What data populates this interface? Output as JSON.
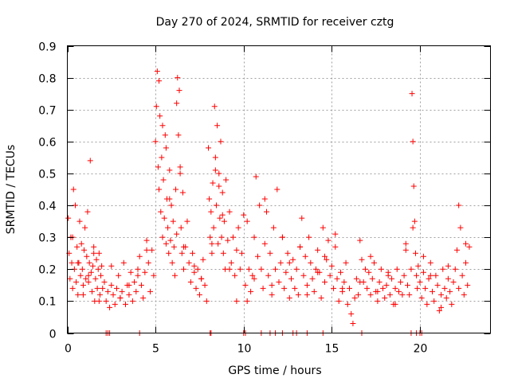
{
  "chart_data": {
    "type": "scatter",
    "title": "Day 270 of 2024, SRMTID for receiver cztg",
    "xlabel": "GPS time / hours",
    "ylabel": "SRMTID / TECUs",
    "xlim": [
      0,
      24
    ],
    "ylim": [
      0,
      0.9
    ],
    "grid": true,
    "marker": "+",
    "x_ticks": [
      0,
      5,
      10,
      15,
      20
    ],
    "x_tick_labels": [
      "0",
      "5",
      "10",
      "15",
      "20"
    ],
    "y_ticks": [
      0,
      0.1,
      0.2,
      0.3,
      0.4,
      0.5,
      0.6,
      0.7,
      0.8,
      0.9
    ],
    "y_tick_labels": [
      "0",
      "0.1",
      "0.2",
      "0.3",
      "0.4",
      "0.5",
      "0.6",
      "0.7",
      "0.8",
      "0.9"
    ],
    "series": [
      {
        "name": "SRMTID",
        "color": "#ff0000",
        "x": [
          0.05,
          0.1,
          0.15,
          0.2,
          0.25,
          0.3,
          0.35,
          0.4,
          0.45,
          0.5,
          0.55,
          0.6,
          0.65,
          0.7,
          0.75,
          0.8,
          0.85,
          0.9,
          0.95,
          1.0,
          1.05,
          1.1,
          1.15,
          1.2,
          1.25,
          1.3,
          1.35,
          1.4,
          1.45,
          1.5,
          1.55,
          1.6,
          1.65,
          1.7,
          1.75,
          1.8,
          1.85,
          1.9,
          1.95,
          2.0,
          2.1,
          2.2,
          2.3,
          2.4,
          2.5,
          2.6,
          2.7,
          2.8,
          2.9,
          3.0,
          3.1,
          3.2,
          3.3,
          3.4,
          3.5,
          3.6,
          3.7,
          3.8,
          3.9,
          4.0,
          4.1,
          4.2,
          4.3,
          4.4,
          4.5,
          4.6,
          4.7,
          4.8,
          4.9,
          5.0,
          5.05,
          5.1,
          5.15,
          5.2,
          5.25,
          5.3,
          5.35,
          5.4,
          5.45,
          5.5,
          5.55,
          5.6,
          5.65,
          5.7,
          5.75,
          5.8,
          5.85,
          5.9,
          5.95,
          6.0,
          6.05,
          6.1,
          6.15,
          6.2,
          6.25,
          6.3,
          6.35,
          6.4,
          6.45,
          6.5,
          6.55,
          6.6,
          6.7,
          6.8,
          6.9,
          7.0,
          7.1,
          7.2,
          7.3,
          7.4,
          7.5,
          7.6,
          7.7,
          7.8,
          7.9,
          8.0,
          8.05,
          8.1,
          8.15,
          8.2,
          8.25,
          8.3,
          8.35,
          8.4,
          8.45,
          8.5,
          8.55,
          8.6,
          8.65,
          8.7,
          8.75,
          8.8,
          8.85,
          8.9,
          8.95,
          9.0,
          9.1,
          9.2,
          9.3,
          9.4,
          9.5,
          9.6,
          9.7,
          9.8,
          9.9,
          10.0,
          10.1,
          10.2,
          10.3,
          10.4,
          10.5,
          10.6,
          10.7,
          10.8,
          10.9,
          11.0,
          11.1,
          11.2,
          11.3,
          11.4,
          11.5,
          11.6,
          11.7,
          11.8,
          11.9,
          12.0,
          12.1,
          12.2,
          12.3,
          12.4,
          12.5,
          12.6,
          12.7,
          12.8,
          12.9,
          13.0,
          13.1,
          13.2,
          13.3,
          13.4,
          13.5,
          13.6,
          13.7,
          13.8,
          13.9,
          14.0,
          14.1,
          14.2,
          14.3,
          14.4,
          14.5,
          14.6,
          14.7,
          14.8,
          14.9,
          15.0,
          15.1,
          15.2,
          15.3,
          15.4,
          15.5,
          15.6,
          15.7,
          15.8,
          15.9,
          16.0,
          16.1,
          16.2,
          16.3,
          16.4,
          16.5,
          16.6,
          16.7,
          16.8,
          16.9,
          17.0,
          17.1,
          17.2,
          17.3,
          17.4,
          17.5,
          17.6,
          17.7,
          17.8,
          17.9,
          18.0,
          18.1,
          18.2,
          18.3,
          18.4,
          18.5,
          18.6,
          18.7,
          18.8,
          18.9,
          19.0,
          19.1,
          19.2,
          19.3,
          19.4,
          19.5,
          19.55,
          19.6,
          19.65,
          19.7,
          19.75,
          19.8,
          19.85,
          19.9,
          20.0,
          20.1,
          20.2,
          20.3,
          20.4,
          20.5,
          20.6,
          20.7,
          20.8,
          20.9,
          21.0,
          21.1,
          21.2,
          21.3,
          21.4,
          21.5,
          21.6,
          21.7,
          21.8,
          21.9,
          22.0,
          22.1,
          22.2,
          22.3,
          22.4,
          22.5,
          22.6,
          22.7,
          22.8,
          0.3,
          0.6,
          0.9,
          1.2,
          1.5,
          1.8,
          2.5,
          3.0,
          3.5,
          4.0,
          4.5,
          5.2,
          5.4,
          5.6,
          5.8,
          6.2,
          6.4,
          6.6,
          7.2,
          7.6,
          8.2,
          8.4,
          8.6,
          8.8,
          9.2,
          9.6,
          10.2,
          10.6,
          11.2,
          11.6,
          12.2,
          12.6,
          13.2,
          13.6,
          14.2,
          14.6,
          15.2,
          15.6,
          16.6,
          17.2,
          17.6,
          18.2,
          18.6,
          19.2,
          19.6,
          20.2,
          20.6,
          21.2,
          21.6,
          22.2,
          22.6,
          2.2,
          2.3,
          2.4,
          4.1,
          8.1,
          8.15,
          10.0,
          10.1,
          11.0,
          11.5,
          11.8,
          12.2,
          12.8,
          13.0,
          13.6,
          14.5,
          16.7,
          19.5,
          19.8,
          20.0,
          20.1
        ],
        "y": [
          0.36,
          0.25,
          0.17,
          0.3,
          0.22,
          0.14,
          0.45,
          0.2,
          0.4,
          0.16,
          0.27,
          0.12,
          0.22,
          0.35,
          0.18,
          0.28,
          0.2,
          0.15,
          0.26,
          0.33,
          0.17,
          0.24,
          0.38,
          0.16,
          0.22,
          0.54,
          0.19,
          0.13,
          0.21,
          0.27,
          0.1,
          0.17,
          0.23,
          0.14,
          0.2,
          0.25,
          0.12,
          0.18,
          0.21,
          0.14,
          0.16,
          0.1,
          0.13,
          0.08,
          0.15,
          0.12,
          0.09,
          0.14,
          0.18,
          0.11,
          0.13,
          0.22,
          0.09,
          0.15,
          0.12,
          0.19,
          0.1,
          0.16,
          0.13,
          0.2,
          0.24,
          0.15,
          0.11,
          0.19,
          0.29,
          0.22,
          0.13,
          0.26,
          0.18,
          0.6,
          0.71,
          0.82,
          0.52,
          0.45,
          0.68,
          0.38,
          0.55,
          0.3,
          0.48,
          0.36,
          0.62,
          0.28,
          0.42,
          0.33,
          0.25,
          0.51,
          0.29,
          0.4,
          0.22,
          0.35,
          0.27,
          0.18,
          0.45,
          0.31,
          0.8,
          0.62,
          0.76,
          0.52,
          0.33,
          0.25,
          0.44,
          0.2,
          0.27,
          0.35,
          0.22,
          0.16,
          0.25,
          0.19,
          0.14,
          0.2,
          0.12,
          0.17,
          0.23,
          0.15,
          0.1,
          0.58,
          0.42,
          0.3,
          0.38,
          0.25,
          0.47,
          0.33,
          0.71,
          0.55,
          0.4,
          0.65,
          0.28,
          0.5,
          0.36,
          0.6,
          0.3,
          0.44,
          0.25,
          0.35,
          0.2,
          0.48,
          0.29,
          0.38,
          0.22,
          0.3,
          0.18,
          0.26,
          0.33,
          0.2,
          0.25,
          0.37,
          0.15,
          0.1,
          0.2,
          0.13,
          0.18,
          0.3,
          0.49,
          0.24,
          0.4,
          0.2,
          0.14,
          0.28,
          0.38,
          0.18,
          0.25,
          0.12,
          0.33,
          0.2,
          0.45,
          0.16,
          0.22,
          0.3,
          0.14,
          0.19,
          0.25,
          0.11,
          0.17,
          0.23,
          0.14,
          0.2,
          0.12,
          0.27,
          0.36,
          0.18,
          0.24,
          0.15,
          0.3,
          0.22,
          0.17,
          0.13,
          0.2,
          0.26,
          0.19,
          0.11,
          0.33,
          0.16,
          0.23,
          0.29,
          0.18,
          0.21,
          0.14,
          0.27,
          0.17,
          0.1,
          0.19,
          0.13,
          0.16,
          0.22,
          0.09,
          0.14,
          0.06,
          0.03,
          0.11,
          0.17,
          0.12,
          0.29,
          0.23,
          0.16,
          0.2,
          0.14,
          0.19,
          0.12,
          0.17,
          0.22,
          0.13,
          0.1,
          0.16,
          0.2,
          0.14,
          0.11,
          0.15,
          0.19,
          0.12,
          0.17,
          0.09,
          0.14,
          0.2,
          0.13,
          0.16,
          0.12,
          0.18,
          0.28,
          0.15,
          0.12,
          0.2,
          0.75,
          0.6,
          0.46,
          0.35,
          0.25,
          0.18,
          0.14,
          0.21,
          0.16,
          0.11,
          0.19,
          0.14,
          0.09,
          0.17,
          0.22,
          0.13,
          0.1,
          0.18,
          0.15,
          0.07,
          0.12,
          0.2,
          0.14,
          0.11,
          0.17,
          0.13,
          0.09,
          0.16,
          0.2,
          0.26,
          0.4,
          0.33,
          0.18,
          0.12,
          0.22,
          0.15,
          0.27,
          0.3,
          0.22,
          0.12,
          0.18,
          0.25,
          0.1,
          0.21,
          0.11,
          0.15,
          0.18,
          0.26,
          0.79,
          0.65,
          0.58,
          0.42,
          0.72,
          0.5,
          0.27,
          0.21,
          0.17,
          0.28,
          0.51,
          0.46,
          0.37,
          0.2,
          0.1,
          0.35,
          0.17,
          0.42,
          0.15,
          0.3,
          0.22,
          0.27,
          0.12,
          0.19,
          0.24,
          0.31,
          0.14,
          0.16,
          0.24,
          0.13,
          0.18,
          0.09,
          0.26,
          0.33,
          0.24,
          0.18,
          0.08,
          0.21,
          0.14,
          0.28,
          0.0,
          0.0,
          0.0,
          0.0,
          0.0,
          0.0,
          0.0,
          0.0,
          0.0,
          0.0,
          0.0,
          0.0,
          0.0,
          0.0,
          0.0,
          0.0,
          0.0,
          0.0,
          0.0,
          0.0,
          0.0
        ]
      }
    ]
  }
}
